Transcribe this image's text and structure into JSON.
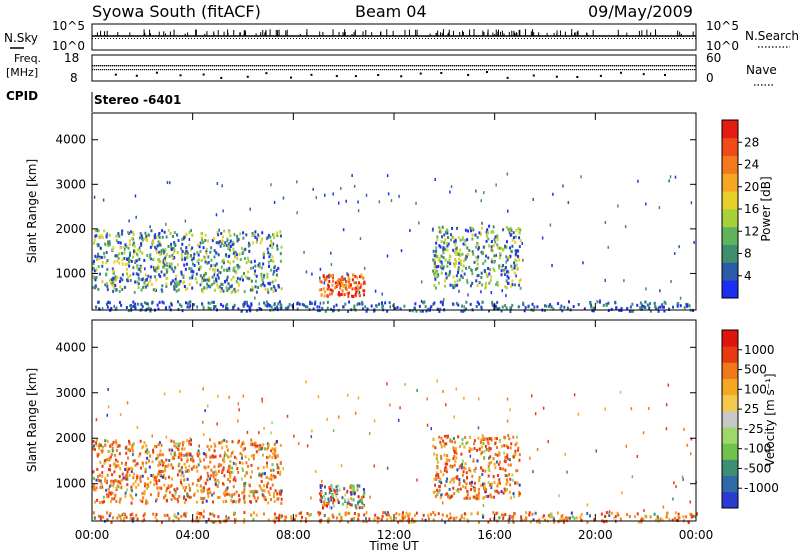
{
  "header": {
    "station": "Syowa South (fitACF)",
    "beam": "Beam 04",
    "date": "09/May/2009"
  },
  "noise_panel": {
    "left_label": "N.Sky",
    "right_label": "N.Search",
    "left_ticks": [
      "10^5",
      "10^0"
    ],
    "right_ticks": [
      "10^5",
      "10^0"
    ]
  },
  "freq_panel": {
    "left_label_line1": "Freq.",
    "left_label_line2": "[MHz]",
    "right_label": "Nave",
    "left_ticks": [
      "18",
      "8"
    ],
    "right_ticks": [
      "60",
      "0"
    ]
  },
  "cpid": {
    "label": "CPID",
    "value": "Stereo -6401"
  },
  "colors": {
    "power_scale": [
      "#1e2ef0",
      "#2b5aa8",
      "#3f8f6e",
      "#5fb35a",
      "#a6d13b",
      "#e8d02a",
      "#f5a623",
      "#f27a1c",
      "#ef4a17",
      "#e51c12"
    ],
    "velocity_scale": [
      "#2a3bd0",
      "#2d6aa6",
      "#3c8f72",
      "#6fc24a",
      "#9fd86a",
      "#c8c8c8",
      "#f2c94c",
      "#f5a623",
      "#f07a1a",
      "#e83a12",
      "#e0140f"
    ]
  },
  "chart_data": [
    {
      "type": "heatmap",
      "title": "Power",
      "ylabel": "Slant Range [km]",
      "xlabel": "",
      "ylim": [
        180,
        4600
      ],
      "yticks": [
        "4000",
        "3000",
        "2000",
        "1000"
      ],
      "xticks": [
        "00:00",
        "04:00",
        "08:00",
        "12:00",
        "16:00",
        "20:00",
        "00:00"
      ],
      "colorbar": {
        "label": "Power [dB]",
        "ticks": [
          "28",
          "24",
          "20",
          "16",
          "12",
          "8",
          "4"
        ]
      },
      "regions": [
        {
          "t_start": 0.0,
          "t_end": 7.5,
          "r_low": 600,
          "r_high": 2000,
          "level": "medium"
        },
        {
          "t_start": 9.0,
          "t_end": 10.8,
          "r_low": 500,
          "r_high": 1000,
          "level": "high"
        },
        {
          "t_start": 13.5,
          "t_end": 17.0,
          "r_low": 700,
          "r_high": 2100,
          "level": "medium"
        },
        {
          "t_start": 0.0,
          "t_end": 24.0,
          "r_low": 180,
          "r_high": 400,
          "level": "low"
        }
      ]
    },
    {
      "type": "heatmap",
      "title": "Velocity",
      "ylabel": "Slant Range [km]",
      "xlabel": "Time UT",
      "ylim": [
        180,
        4600
      ],
      "yticks": [
        "4000",
        "3000",
        "2000",
        "1000"
      ],
      "xticks": [
        "00:00",
        "04:00",
        "08:00",
        "12:00",
        "16:00",
        "20:00",
        "00:00"
      ],
      "colorbar": {
        "label": "Velocity [m s⁻¹]",
        "ticks": [
          "1000",
          "500",
          "100",
          "25",
          "-25",
          "-100",
          "-500",
          "-1000"
        ]
      },
      "regions": [
        {
          "t_start": 0.0,
          "t_end": 7.5,
          "r_low": 600,
          "r_high": 2000,
          "level": "negative"
        },
        {
          "t_start": 9.0,
          "t_end": 10.8,
          "r_low": 500,
          "r_high": 1000,
          "level": "mixed"
        },
        {
          "t_start": 13.5,
          "t_end": 17.0,
          "r_low": 700,
          "r_high": 2100,
          "level": "negative"
        },
        {
          "t_start": 0.0,
          "t_end": 24.0,
          "r_low": 180,
          "r_high": 400,
          "level": "negative"
        }
      ]
    }
  ]
}
